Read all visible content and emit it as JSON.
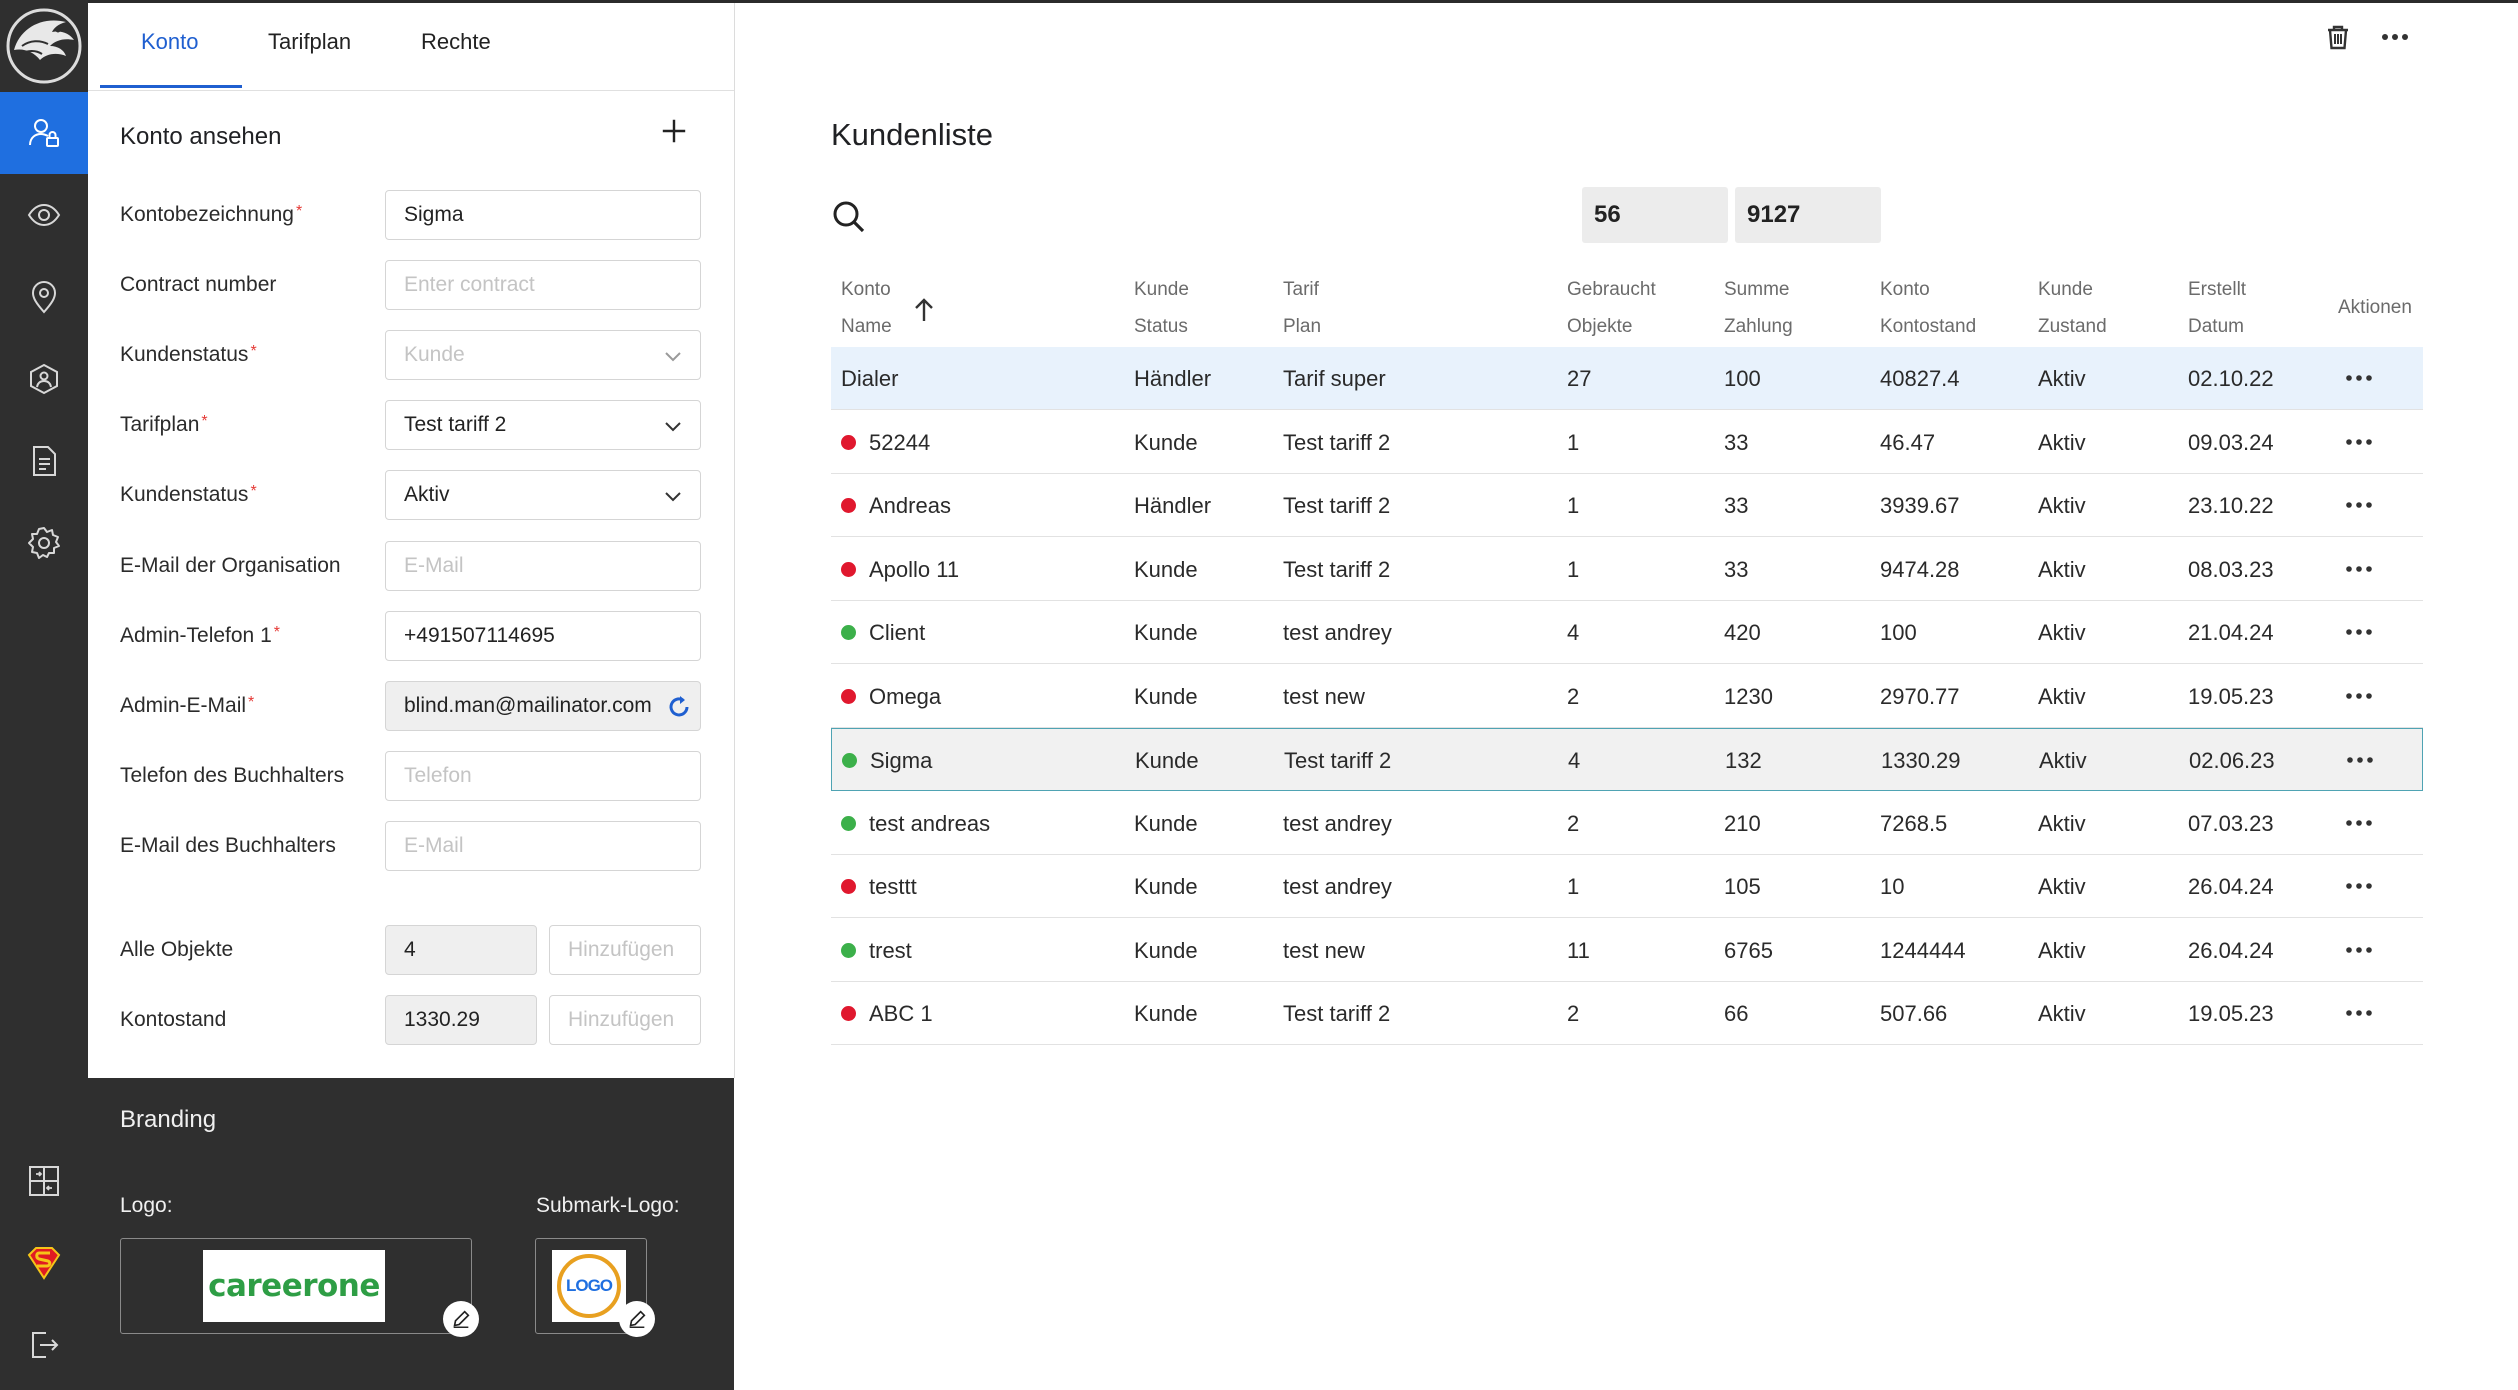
{
  "tabs": [
    "Konto",
    "Tarifplan",
    "Rechte"
  ],
  "panel": {
    "title": "Konto ansehen",
    "fields": [
      {
        "label": "Kontobezeichnung",
        "required": true,
        "value": "Sigma",
        "placeholder": ""
      },
      {
        "label": "Contract number",
        "required": false,
        "value": "",
        "placeholder": "Enter contract"
      },
      {
        "label": "Kundenstatus",
        "required": true,
        "value": "",
        "placeholder": "Kunde",
        "dropdown": true
      },
      {
        "label": "Tarifplan",
        "required": true,
        "value": "Test tariff 2",
        "dropdown": true
      },
      {
        "label": "Kundenstatus",
        "required": true,
        "value": "Aktiv",
        "dropdown": true
      },
      {
        "label": "E-Mail der Organisation",
        "required": false,
        "value": "",
        "placeholder": "E-Mail"
      },
      {
        "label": "Admin-Telefon 1",
        "required": true,
        "value": "+491507114695"
      },
      {
        "label": "Admin-E-Mail",
        "required": true,
        "value": "blind.man@mailinator.com"
      },
      {
        "label": "Telefon des Buchhalters",
        "required": false,
        "value": "",
        "placeholder": "Telefon"
      },
      {
        "label": "E-Mail des Buchhalters",
        "required": false,
        "value": "",
        "placeholder": "E-Mail"
      }
    ],
    "all_objects": {
      "label": "Alle Objekte",
      "value": "4",
      "add_placeholder": "Hinzufügen"
    },
    "balance": {
      "label": "Kontostand",
      "value": "1330.29",
      "add_placeholder": "Hinzufügen"
    }
  },
  "branding": {
    "title": "Branding",
    "logo_label": "Logo:",
    "submark_label": "Submark-Logo:",
    "logo_text": "careerone",
    "submark_text": "LOGO"
  },
  "main": {
    "title": "Kundenliste",
    "stat1": "56",
    "stat2": "9127",
    "columns": [
      {
        "l1": "Konto",
        "l2": "Name"
      },
      {
        "l1": "Kunde",
        "l2": "Status"
      },
      {
        "l1": "Tarif",
        "l2": "Plan"
      },
      {
        "l1": "Gebraucht",
        "l2": "Objekte"
      },
      {
        "l1": "Summe",
        "l2": "Zahlung"
      },
      {
        "l1": "Konto",
        "l2": "Kontostand"
      },
      {
        "l1": "Kunde",
        "l2": "Zustand"
      },
      {
        "l1": "Erstellt",
        "l2": "Datum"
      },
      {
        "l1": "Aktionen",
        "l2": ""
      }
    ],
    "rows": [
      {
        "name": "Dialer",
        "dot": "",
        "status": "Händler",
        "plan": "Tarif super",
        "objects": "27",
        "payment": "100",
        "balance": "40827.4",
        "state": "Aktiv",
        "date": "02.10.22"
      },
      {
        "name": "52244",
        "dot": "#e0182e",
        "status": "Kunde",
        "plan": "Test tariff 2",
        "objects": "1",
        "payment": "33",
        "balance": "46.47",
        "state": "Aktiv",
        "date": "09.03.24"
      },
      {
        "name": "Andreas",
        "dot": "#e0182e",
        "status": "Händler",
        "plan": "Test tariff 2",
        "objects": "1",
        "payment": "33",
        "balance": "3939.67",
        "state": "Aktiv",
        "date": "23.10.22"
      },
      {
        "name": "Apollo 11",
        "dot": "#e0182e",
        "status": "Kunde",
        "plan": "Test tariff 2",
        "objects": "1",
        "payment": "33",
        "balance": "9474.28",
        "state": "Aktiv",
        "date": "08.03.23"
      },
      {
        "name": "Client",
        "dot": "#3cb04a",
        "status": "Kunde",
        "plan": "test andrey",
        "objects": "4",
        "payment": "420",
        "balance": "100",
        "state": "Aktiv",
        "date": "21.04.24"
      },
      {
        "name": "Omega",
        "dot": "#e0182e",
        "status": "Kunde",
        "plan": "test new",
        "objects": "2",
        "payment": "1230",
        "balance": "2970.77",
        "state": "Aktiv",
        "date": "19.05.23"
      },
      {
        "name": "Sigma",
        "dot": "#3cb04a",
        "status": "Kunde",
        "plan": "Test tariff 2",
        "objects": "4",
        "payment": "132",
        "balance": "1330.29",
        "state": "Aktiv",
        "date": "02.06.23"
      },
      {
        "name": "test andreas",
        "dot": "#3cb04a",
        "status": "Kunde",
        "plan": "test andrey",
        "objects": "2",
        "payment": "210",
        "balance": "7268.5",
        "state": "Aktiv",
        "date": "07.03.23"
      },
      {
        "name": "testtt",
        "dot": "#e0182e",
        "status": "Kunde",
        "plan": "test andrey",
        "objects": "1",
        "payment": "105",
        "balance": "10",
        "state": "Aktiv",
        "date": "26.04.24"
      },
      {
        "name": "trest",
        "dot": "#3cb04a",
        "status": "Kunde",
        "plan": "test new",
        "objects": "11",
        "payment": "6765",
        "balance": "1244444",
        "state": "Aktiv",
        "date": "26.04.24"
      },
      {
        "name": "ABC 1",
        "dot": "#e0182e",
        "status": "Kunde",
        "plan": "Test tariff 2",
        "objects": "2",
        "payment": "66",
        "balance": "507.66",
        "state": "Aktiv",
        "date": "19.05.23"
      }
    ],
    "highlighted_row": 0,
    "selected_row": 6
  },
  "colors": {
    "accent": "#1f6fe0",
    "active_dot": "#3cb04a",
    "inactive_dot": "#e0182e",
    "rail": "#2f2f2f"
  }
}
